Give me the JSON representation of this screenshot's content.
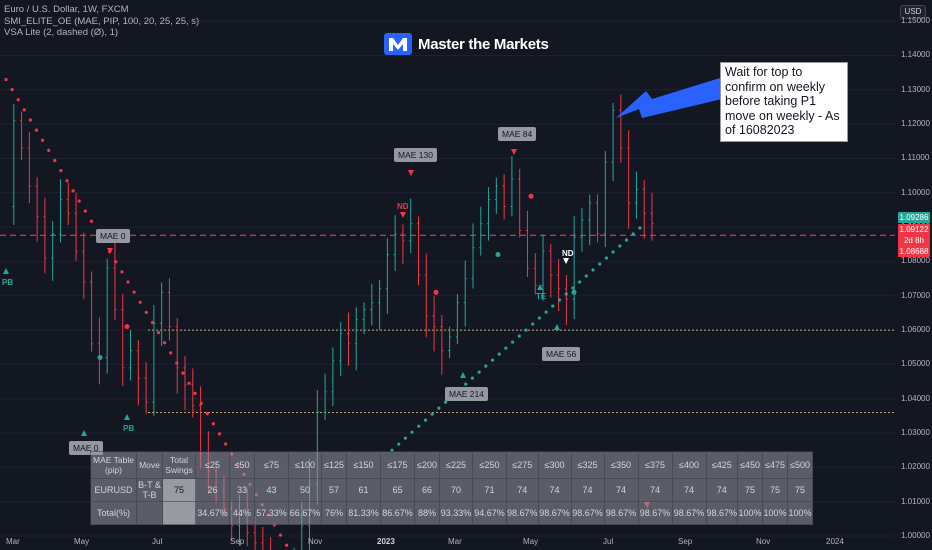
{
  "legend": {
    "line1": "Euro / U.S. Dollar, 1W, FXCM",
    "line2": "SMI_ELITE_OE (MAE, PIP, 100, 20, 25, 25, s)",
    "line3": "VSA Lite (2, dashed (Ø), 1)"
  },
  "currency": "USD",
  "logo_text": "Master the Markets",
  "note": "Wait for top to confirm on weekly before taking P1 move on weekly - As of 16082023",
  "price_tags": [
    {
      "text": "1.09286",
      "color": "#26a69a"
    },
    {
      "text": "1.09122",
      "color": "#f23645"
    },
    {
      "text": "2d 8h",
      "color": "#f23645"
    },
    {
      "text": "1.08688",
      "color": "#f23645"
    }
  ],
  "mae_labels": [
    {
      "text": "MAE 0"
    },
    {
      "text": "MAE 0"
    },
    {
      "text": "MAE 130"
    },
    {
      "text": "MAE 214"
    },
    {
      "text": "MAE 84"
    },
    {
      "text": "MAE 56"
    }
  ],
  "signals": [
    {
      "text": "PB",
      "color": "#26a69a"
    },
    {
      "text": "PB",
      "color": "#26a69a"
    },
    {
      "text": "ND",
      "color": "#f23645"
    },
    {
      "text": "ND",
      "color": "#ffffff"
    },
    {
      "text": "TE",
      "color": "#26a69a"
    }
  ],
  "table": {
    "header": [
      "MAE Table (pip)",
      "Move",
      "Total Swings",
      "≤25",
      "≤50",
      "≤75",
      "≤100",
      "≤125",
      "≤150",
      "≤175",
      "≤200",
      "≤225",
      "≤250",
      "≤275",
      "≤300",
      "≤325",
      "≤350",
      "≤375",
      "≤400",
      "≤425",
      "≤450",
      "≤475",
      "≤500"
    ],
    "row1": [
      "EURUSD",
      "B-T & T-B",
      "75",
      "26",
      "33",
      "43",
      "50",
      "57",
      "61",
      "65",
      "66",
      "70",
      "71",
      "74",
      "74",
      "74",
      "74",
      "74",
      "74",
      "74",
      "75",
      "75",
      "75"
    ],
    "row2": [
      "Total(%)",
      "",
      "",
      "34.67%",
      "44%",
      "57.33%",
      "66.67%",
      "76%",
      "81.33%",
      "86.67%",
      "88%",
      "93.33%",
      "94.67%",
      "98.67%",
      "98.67%",
      "98.67%",
      "98.67%",
      "98.67%",
      "98.67%",
      "98.67%",
      "100%",
      "100%",
      "100%"
    ]
  },
  "chart_data": {
    "type": "candlestick",
    "symbol": "Euro / U.S. Dollar, 1W, FXCM",
    "ylim": [
      1.0,
      1.155
    ],
    "y_ticks": [
      "1.15000",
      "1.14000",
      "1.13000",
      "1.12000",
      "1.11000",
      "1.10000",
      "1.09000",
      "1.08000",
      "1.07000",
      "1.06000",
      "1.05000",
      "1.04000",
      "1.03000",
      "1.02000",
      "1.01000",
      "1.00000"
    ],
    "x_ticks": [
      "Mar",
      "May",
      "Jul",
      "Sep",
      "Nov",
      "2023",
      "Mar",
      "May",
      "Jul",
      "Sep",
      "Nov",
      "2024"
    ],
    "horizontal_levels": [
      {
        "value": 1.0876,
        "style": "dashed",
        "color": "#f23645"
      },
      {
        "value": 1.06,
        "style": "dotted",
        "color": "#c8a96a"
      },
      {
        "value": 1.036,
        "style": "dotted",
        "color": "#c8a96a"
      }
    ],
    "weekly_close_path": [
      1.096,
      1.121,
      1.113,
      1.102,
      1.093,
      1.081,
      1.088,
      1.098,
      1.094,
      1.083,
      1.074,
      1.056,
      1.052,
      1.078,
      1.066,
      1.049,
      1.054,
      1.046,
      1.039,
      1.062,
      1.071,
      1.061,
      1.049,
      1.044,
      1.038,
      1.024,
      1.019,
      1.013,
      1.008,
      1.003,
      1.006,
      1.001,
      0.998,
      0.995,
      0.992,
      0.987,
      0.985,
      0.993,
      1.003,
      1.015,
      1.036,
      1.042,
      1.051,
      1.059,
      1.056,
      1.063,
      1.066,
      1.068,
      1.072,
      1.082,
      1.088,
      1.086,
      1.091,
      1.076,
      1.064,
      1.061,
      1.054,
      1.058,
      1.068,
      1.075,
      1.084,
      1.091,
      1.098,
      1.102,
      1.096,
      1.104,
      1.089,
      1.078,
      1.073,
      1.083,
      1.076,
      1.072,
      1.069,
      1.087,
      1.092,
      1.097,
      1.088,
      1.109,
      1.124,
      1.113,
      1.097,
      1.101,
      1.094,
      1.091
    ],
    "mae_annotations": [
      "MAE 0",
      "MAE 0",
      "MAE 130",
      "MAE 214",
      "MAE 84",
      "MAE 56"
    ],
    "signals": [
      "PB",
      "PB",
      "ND",
      "ND",
      "TE"
    ]
  }
}
